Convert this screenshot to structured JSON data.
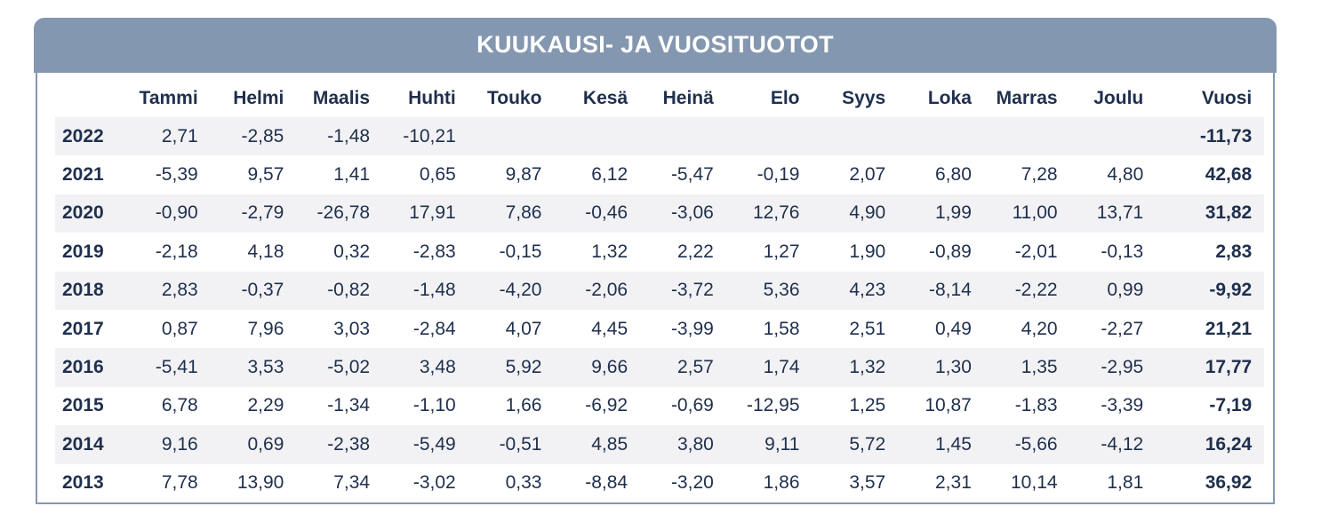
{
  "title": "KUUKAUSI- JA VUOSITUOTOT",
  "columns": [
    "",
    "Tammi",
    "Helmi",
    "Maalis",
    "Huhti",
    "Touko",
    "Kesä",
    "Heinä",
    "Elo",
    "Syys",
    "Loka",
    "Marras",
    "Joulu",
    "Vuosi"
  ],
  "rows": [
    [
      "2022",
      "2,71",
      "-2,85",
      "-1,48",
      "-10,21",
      "",
      "",
      "",
      "",
      "",
      "",
      "",
      "",
      "-11,73"
    ],
    [
      "2021",
      "-5,39",
      "9,57",
      "1,41",
      "0,65",
      "9,87",
      "6,12",
      "-5,47",
      "-0,19",
      "2,07",
      "6,80",
      "7,28",
      "4,80",
      "42,68"
    ],
    [
      "2020",
      "-0,90",
      "-2,79",
      "-26,78",
      "17,91",
      "7,86",
      "-0,46",
      "-3,06",
      "12,76",
      "4,90",
      "1,99",
      "11,00",
      "13,71",
      "31,82"
    ],
    [
      "2019",
      "-2,18",
      "4,18",
      "0,32",
      "-2,83",
      "-0,15",
      "1,32",
      "2,22",
      "1,27",
      "1,90",
      "-0,89",
      "-2,01",
      "-0,13",
      "2,83"
    ],
    [
      "2018",
      "2,83",
      "-0,37",
      "-0,82",
      "-1,48",
      "-4,20",
      "-2,06",
      "-3,72",
      "5,36",
      "4,23",
      "-8,14",
      "-2,22",
      "0,99",
      "-9,92"
    ],
    [
      "2017",
      "0,87",
      "7,96",
      "3,03",
      "-2,84",
      "4,07",
      "4,45",
      "-3,99",
      "1,58",
      "2,51",
      "0,49",
      "4,20",
      "-2,27",
      "21,21"
    ],
    [
      "2016",
      "-5,41",
      "3,53",
      "-5,02",
      "3,48",
      "5,92",
      "9,66",
      "2,57",
      "1,74",
      "1,32",
      "1,30",
      "1,35",
      "-2,95",
      "17,77"
    ],
    [
      "2015",
      "6,78",
      "2,29",
      "-1,34",
      "-1,10",
      "1,66",
      "-6,92",
      "-0,69",
      "-12,95",
      "1,25",
      "10,87",
      "-1,83",
      "-3,39",
      "-7,19"
    ],
    [
      "2014",
      "9,16",
      "0,69",
      "-2,38",
      "-5,49",
      "-0,51",
      "4,85",
      "3,80",
      "9,11",
      "5,72",
      "1,45",
      "-5,66",
      "-4,12",
      "16,24"
    ],
    [
      "2013",
      "7,78",
      "13,90",
      "7,34",
      "-3,02",
      "0,33",
      "-8,84",
      "-3,20",
      "1,86",
      "3,57",
      "2,31",
      "10,14",
      "1,81",
      "36,92"
    ]
  ],
  "colors": {
    "header_bg": "#8497b0",
    "text": "#1f2f4d",
    "row_shade": "#f2f2f4"
  }
}
